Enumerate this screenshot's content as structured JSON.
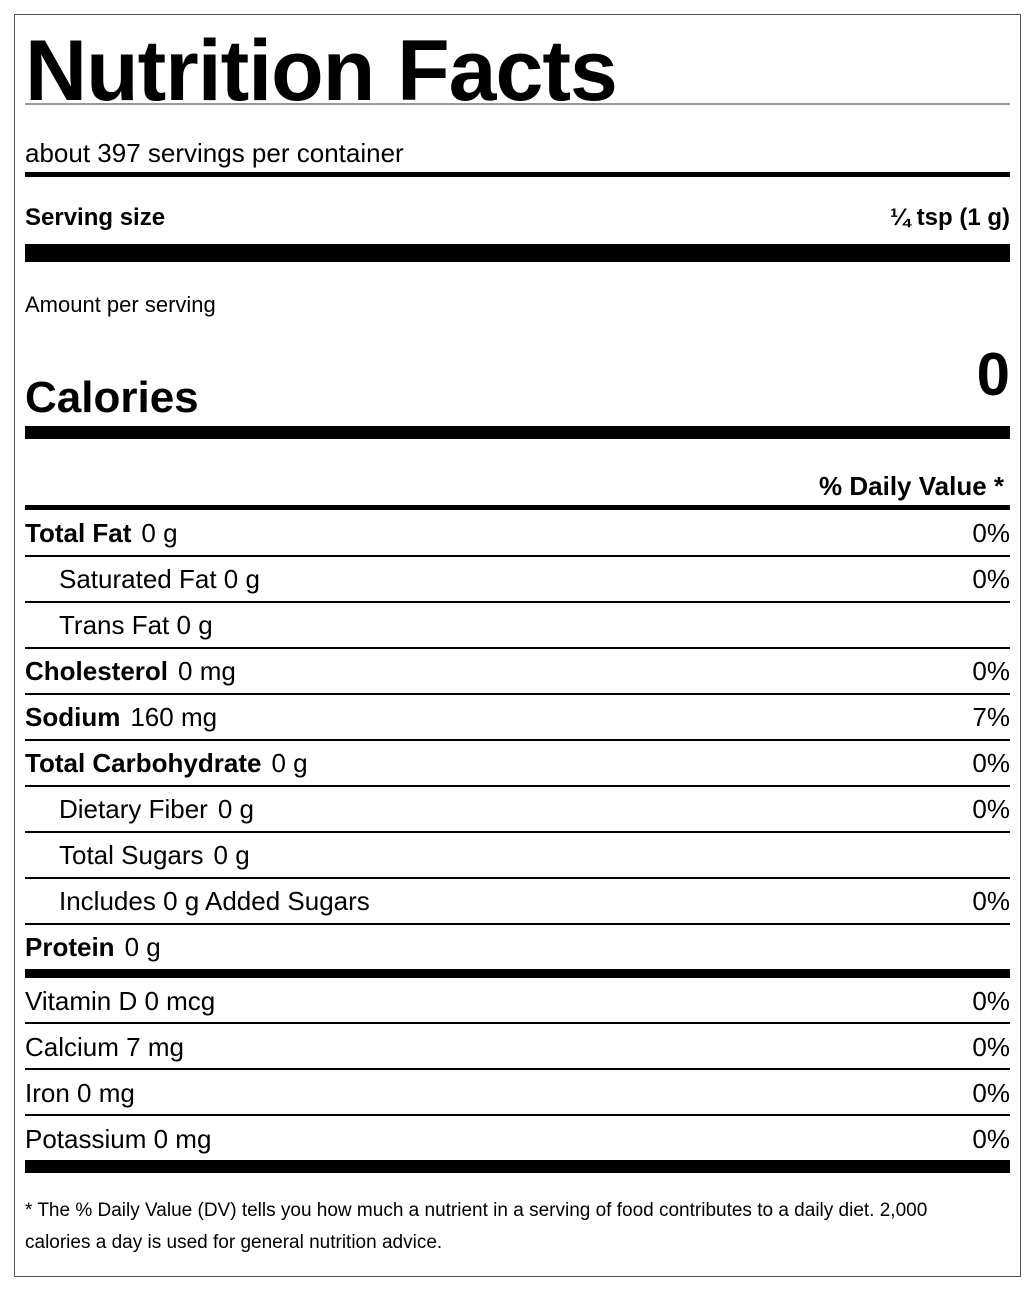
{
  "title": "Nutrition Facts",
  "servings_per_container": "about 397 servings per container",
  "serving_size": {
    "label": "Serving size",
    "value": "¼ tsp (1 g)"
  },
  "amount_per_serving": "Amount per serving",
  "calories": {
    "label": "Calories",
    "value": "0"
  },
  "daily_value_header": "% Daily Value *",
  "nutrients": [
    {
      "name": "Total Fat",
      "amount": "0 g",
      "dv": "0%"
    },
    {
      "name": "Saturated Fat 0 g",
      "amount": "",
      "dv": "0%"
    },
    {
      "name": "Trans Fat 0 g",
      "amount": "",
      "dv": ""
    },
    {
      "name": "Cholesterol",
      "amount": "0 mg",
      "dv": "0%"
    },
    {
      "name": "Sodium",
      "amount": "160 mg",
      "dv": "7%"
    },
    {
      "name": "Total Carbohydrate",
      "amount": "0 g",
      "dv": "0%"
    },
    {
      "name": "Dietary Fiber",
      "amount": "0 g",
      "dv": "0%"
    },
    {
      "name": "Total Sugars",
      "amount": "0 g",
      "dv": ""
    },
    {
      "name": "Includes 0 g Added Sugars",
      "amount": "",
      "dv": "0%"
    },
    {
      "name": "Protein",
      "amount": "0 g",
      "dv": ""
    }
  ],
  "vitamins": [
    {
      "name": "Vitamin D 0 mcg",
      "dv": "0%"
    },
    {
      "name": "Calcium 7 mg",
      "dv": "0%"
    },
    {
      "name": "Iron 0 mg",
      "dv": "0%"
    },
    {
      "name": "Potassium 0 mg",
      "dv": "0%"
    }
  ],
  "footnote": "* The % Daily Value (DV) tells you how much a nutrient in a serving of food contributes to a daily diet. 2,000 calories a day is used for general nutrition advice."
}
